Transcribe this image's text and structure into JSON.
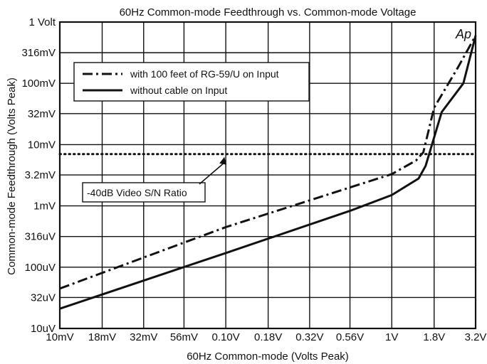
{
  "chart_data": {
    "type": "line",
    "title": "60Hz Common-mode Feedthrough vs. Common-mode Voltage",
    "xlabel": "60Hz Common-mode (Volts Peak)",
    "ylabel": "Common-mode Feedthrough (Volts Peak)",
    "x_scale": "log",
    "y_scale": "log",
    "xlim": [
      0.01,
      3.2
    ],
    "ylim": [
      1e-05,
      1
    ],
    "x_ticks": [
      {
        "value": 0.01,
        "label": "10mV"
      },
      {
        "value": 0.018,
        "label": "18mV"
      },
      {
        "value": 0.032,
        "label": "32mV"
      },
      {
        "value": 0.056,
        "label": "56mV"
      },
      {
        "value": 0.1,
        "label": "0.10V"
      },
      {
        "value": 0.18,
        "label": "0.18V"
      },
      {
        "value": 0.32,
        "label": "0.32V"
      },
      {
        "value": 0.56,
        "label": "0.56V"
      },
      {
        "value": 1.0,
        "label": "1V"
      },
      {
        "value": 1.8,
        "label": "1.8V"
      },
      {
        "value": 3.2,
        "label": "3.2V"
      }
    ],
    "y_ticks": [
      {
        "value": 1,
        "label": "1 Volt"
      },
      {
        "value": 0.316,
        "label": "316mV"
      },
      {
        "value": 0.1,
        "label": "100mV"
      },
      {
        "value": 0.032,
        "label": "32mV"
      },
      {
        "value": 0.01,
        "label": "10mV"
      },
      {
        "value": 0.0032,
        "label": "3.2mV"
      },
      {
        "value": 0.001,
        "label": "1mV"
      },
      {
        "value": 0.000316,
        "label": "316uV"
      },
      {
        "value": 0.0001,
        "label": "100uV"
      },
      {
        "value": 3.2e-05,
        "label": "32uV"
      },
      {
        "value": 1e-05,
        "label": "10uV"
      }
    ],
    "grid": true,
    "legend_position": "top-left",
    "series": [
      {
        "name": "with 100 feet of RG-59/U on Input",
        "style": "dash-dot",
        "points": [
          [
            0.01,
            4.47e-05
          ],
          [
            0.1,
            0.00045
          ],
          [
            1.0,
            0.0033
          ],
          [
            1.4,
            0.0055
          ],
          [
            1.55,
            0.0075
          ],
          [
            1.8,
            0.04
          ],
          [
            2.5,
            0.18
          ],
          [
            3.2,
            0.6
          ]
        ]
      },
      {
        "name": "without cable on Input",
        "style": "solid",
        "points": [
          [
            0.01,
            2.1e-05
          ],
          [
            0.1,
            0.00017
          ],
          [
            0.56,
            0.00083
          ],
          [
            1.0,
            0.0015
          ],
          [
            1.45,
            0.0028
          ],
          [
            1.6,
            0.0045
          ],
          [
            2.0,
            0.034
          ],
          [
            2.7,
            0.1
          ],
          [
            3.2,
            0.6
          ]
        ]
      }
    ],
    "reference_line": {
      "value": 0.007,
      "style": "dotted"
    },
    "annotation": {
      "text": "-40dB Video S/N Ratio",
      "target": [
        0.1,
        0.007
      ]
    },
    "logo": "Ap"
  },
  "colors": {
    "line": "#111111",
    "grid": "#111111",
    "background": "#ffffff"
  }
}
